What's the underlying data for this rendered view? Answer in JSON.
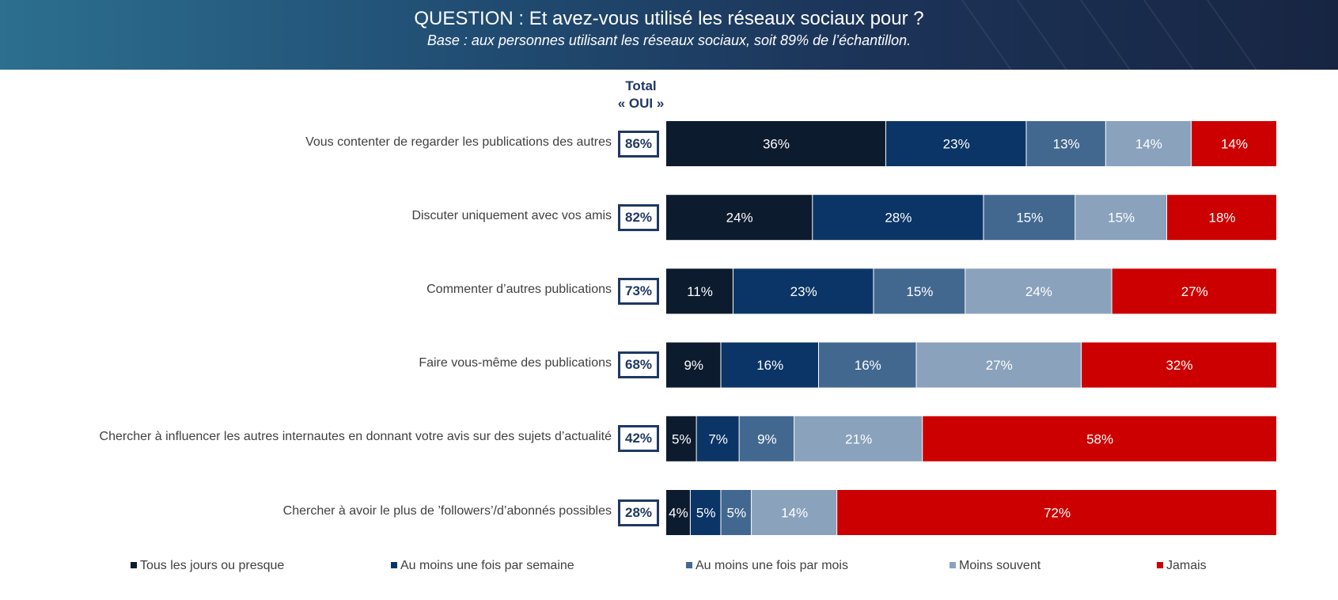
{
  "header": {
    "title": "QUESTION : Et avez-vous utilisé les réseaux sociaux pour ?",
    "subtitle": "Base : aux personnes utilisant les réseaux sociaux, soit 89% de l’échantillon."
  },
  "total_header": {
    "line1": "Total",
    "line2": "« OUI »"
  },
  "chart_data": {
    "type": "bar",
    "orientation": "horizontal",
    "stacked": true,
    "xlim": [
      0,
      100
    ],
    "categories": [
      "Vous contenter de regarder les publications des autres",
      "Discuter uniquement avec vos amis",
      "Commenter d’autres publications",
      "Faire vous-même des publications",
      "Chercher à influencer les autres internautes en donnant votre avis sur des sujets d’actualité",
      "Chercher à avoir le plus de ’followers’/d’abonnés possibles"
    ],
    "totals_oui": [
      "86%",
      "82%",
      "73%",
      "68%",
      "42%",
      "28%"
    ],
    "series": [
      {
        "name": "Tous les jours ou presque",
        "color": "#0d1b2e",
        "values": [
          36,
          24,
          11,
          9,
          5,
          4
        ]
      },
      {
        "name": "Au moins une fois par semaine",
        "color": "#0b3566",
        "values": [
          23,
          28,
          23,
          16,
          7,
          5
        ]
      },
      {
        "name": "Au moins une fois par mois",
        "color": "#436890",
        "values": [
          13,
          15,
          15,
          16,
          9,
          5
        ]
      },
      {
        "name": "Moins souvent",
        "color": "#8aa2bc",
        "values": [
          14,
          15,
          24,
          27,
          21,
          14
        ]
      },
      {
        "name": "Jamais",
        "color": "#cc0000",
        "values": [
          14,
          18,
          27,
          32,
          58,
          72
        ]
      }
    ],
    "legend_position": "bottom",
    "grid": false
  }
}
